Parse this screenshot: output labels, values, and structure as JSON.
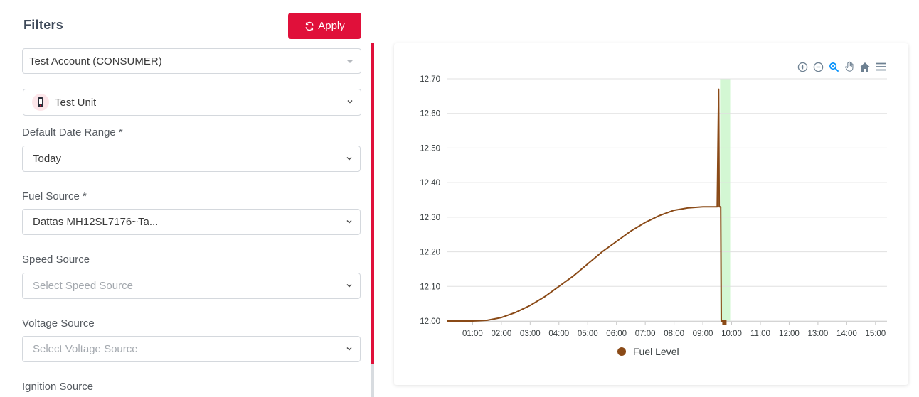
{
  "filters": {
    "title": "Filters",
    "apply_label": "Apply",
    "account": {
      "value": "Test Account (CONSUMER)"
    },
    "unit": {
      "value": "Test Unit"
    },
    "date_range": {
      "label": "Default Date Range *",
      "value": "Today"
    },
    "fuel_source": {
      "label": "Fuel Source *",
      "value": "Dattas MH12SL7176~Ta..."
    },
    "speed_source": {
      "label": "Speed Source",
      "placeholder": "Select Speed Source"
    },
    "voltage_source": {
      "label": "Voltage Source",
      "placeholder": "Select Voltage Source"
    },
    "ignition_source": {
      "label": "Ignition Source"
    }
  },
  "toolbar": {
    "icons": [
      "zoom-in-icon",
      "zoom-out-icon",
      "selection-zoom-icon",
      "pan-hand-icon",
      "home-reset-icon",
      "menu-icon"
    ]
  },
  "colors": {
    "accent": "#e0103a",
    "series": "#8a4a17",
    "highlight_band": "#c8f5c8"
  },
  "chart_data": {
    "type": "line",
    "y_ticks": [
      "12.70",
      "12.60",
      "12.50",
      "12.40",
      "12.30",
      "12.20",
      "12.10",
      "12.00"
    ],
    "ylim": [
      12.0,
      12.7
    ],
    "x_ticks": [
      "01:00",
      "02:00",
      "03:00",
      "04:00",
      "05:00",
      "06:00",
      "07:00",
      "08:00",
      "09:00",
      "10:00",
      "11:00",
      "12:00",
      "13:00",
      "14:00",
      "15:00"
    ],
    "xlim_hours": [
      0.1,
      15.4
    ],
    "legend": "top-none-bottom-center",
    "series": [
      {
        "name": "Fuel Level",
        "points": [
          [
            0.1,
            12.0
          ],
          [
            1.0,
            12.0
          ],
          [
            1.5,
            12.002
          ],
          [
            2.0,
            12.01
          ],
          [
            2.5,
            12.025
          ],
          [
            3.0,
            12.045
          ],
          [
            3.5,
            12.07
          ],
          [
            4.0,
            12.1
          ],
          [
            4.5,
            12.13
          ],
          [
            5.0,
            12.165
          ],
          [
            5.5,
            12.2
          ],
          [
            6.0,
            12.23
          ],
          [
            6.5,
            12.26
          ],
          [
            7.0,
            12.285
          ],
          [
            7.5,
            12.305
          ],
          [
            8.0,
            12.32
          ],
          [
            8.5,
            12.327
          ],
          [
            9.0,
            12.33
          ],
          [
            9.5,
            12.33
          ],
          [
            9.55,
            12.67
          ],
          [
            9.57,
            12.33
          ],
          [
            9.62,
            12.33
          ],
          [
            9.64,
            12.0
          ],
          [
            9.75,
            12.0
          ]
        ]
      }
    ],
    "highlight_range_hours": [
      9.6,
      9.95
    ]
  }
}
